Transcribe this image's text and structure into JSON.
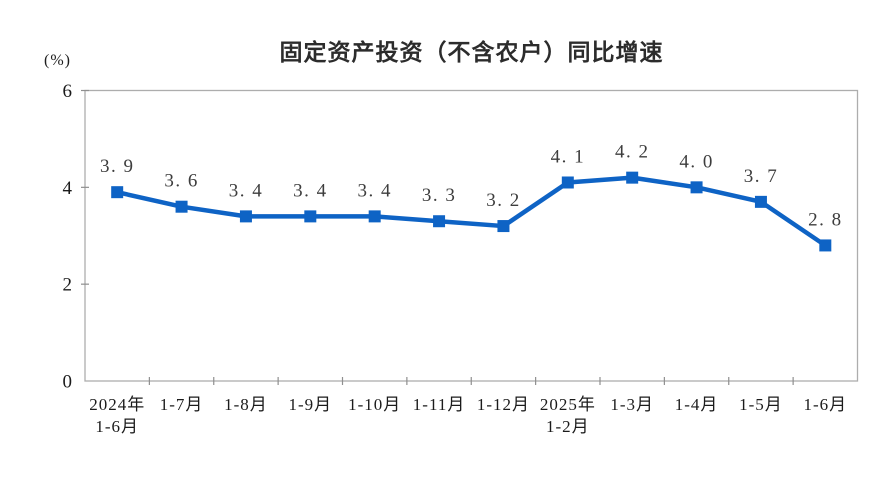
{
  "chart_data": {
    "type": "line",
    "title": "固定资产投资（不含农户）同比增速",
    "unit_label": "(%)",
    "categories": [
      [
        "2024年",
        "1-6月"
      ],
      [
        "1-7月"
      ],
      [
        "1-8月"
      ],
      [
        "1-9月"
      ],
      [
        "1-10月"
      ],
      [
        "1-11月"
      ],
      [
        "1-12月"
      ],
      [
        "2025年",
        "1-2月"
      ],
      [
        "1-3月"
      ],
      [
        "1-4月"
      ],
      [
        "1-5月"
      ],
      [
        "1-6月"
      ]
    ],
    "values": [
      3.9,
      3.6,
      3.4,
      3.4,
      3.4,
      3.3,
      3.2,
      4.1,
      4.2,
      4.0,
      3.7,
      2.8
    ],
    "point_labels": [
      "3.9",
      "3.6",
      "3.4",
      "3.4",
      "3.4",
      "3.3",
      "3.2",
      "4.1",
      "4.2",
      "4.0",
      "3.7",
      "2.8"
    ],
    "xlabel": "",
    "ylabel": "(%)",
    "ylim": [
      0,
      6
    ],
    "yticks": [
      0,
      2,
      4,
      6
    ],
    "grid": false,
    "legend_position": "none",
    "marker": "square",
    "colors": {
      "line": "#0e63c5",
      "marker": "#0e63c5",
      "axis_border": "#adadad",
      "tick": "#8f8f8f",
      "point_label": "#3d3d3d",
      "tick_label": "#1b1b1b",
      "title": "#2c2c2c",
      "background": "#ffffff"
    }
  }
}
